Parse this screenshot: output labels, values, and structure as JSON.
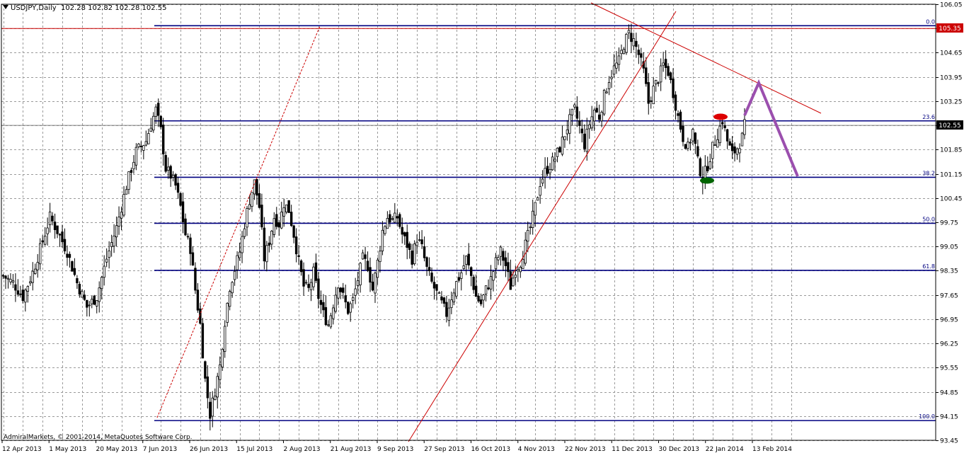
{
  "header": {
    "symbol": "USDJPY,Daily",
    "ohlc": "102.28 102.82 102.28 102.55"
  },
  "copyright": "AdmiralMarkets, © 2001-2014, MetaQuotes Software Corp.",
  "price_labels": {
    "current": "102.55",
    "resistance": "105.35"
  },
  "chart_data": {
    "type": "candlestick",
    "title": "USDJPY,Daily",
    "grid": true,
    "ylim": [
      93.45,
      106.05
    ],
    "y_ticks": [
      "106.05",
      "105.35",
      "104.65",
      "103.95",
      "103.25",
      "102.55",
      "101.85",
      "101.15",
      "100.45",
      "99.75",
      "99.05",
      "98.35",
      "97.65",
      "96.95",
      "96.25",
      "95.55",
      "94.85",
      "94.15",
      "93.45"
    ],
    "x_ticks": [
      "12 Apr 2013",
      "1 May 2013",
      "20 May 2013",
      "7 Jun 2013",
      "26 Jun 2013",
      "15 Jul 2013",
      "2 Aug 2013",
      "21 Aug 2013",
      "9 Sep 2013",
      "27 Sep 2013",
      "16 Oct 2013",
      "4 Nov 2013",
      "22 Nov 2013",
      "11 Dec 2013",
      "30 Dec 2013",
      "22 Jan 2014",
      "13 Feb 2014"
    ],
    "series": [
      {
        "close_path": [
          [
            0,
            98.2
          ],
          [
            4,
            98.0
          ],
          [
            8,
            97.6
          ],
          [
            12,
            98.3
          ],
          [
            16,
            99.2
          ],
          [
            19,
            99.9
          ],
          [
            22,
            99.5
          ],
          [
            26,
            98.9
          ],
          [
            30,
            98.0
          ],
          [
            34,
            97.3
          ],
          [
            38,
            97.6
          ],
          [
            42,
            98.7
          ],
          [
            46,
            99.6
          ],
          [
            50,
            100.8
          ],
          [
            54,
            101.8
          ],
          [
            58,
            102.1
          ],
          [
            60,
            102.6
          ],
          [
            62,
            103.0
          ],
          [
            64,
            102.4
          ],
          [
            66,
            101.3
          ],
          [
            68,
            101.1
          ],
          [
            70,
            100.8
          ],
          [
            72,
            100.2
          ],
          [
            74,
            99.4
          ],
          [
            76,
            99.0
          ],
          [
            78,
            97.8
          ],
          [
            80,
            96.8
          ],
          [
            82,
            95.2
          ],
          [
            84,
            94.2
          ],
          [
            86,
            94.9
          ],
          [
            88,
            95.6
          ],
          [
            90,
            96.9
          ],
          [
            92,
            97.9
          ],
          [
            94,
            98.4
          ],
          [
            96,
            98.9
          ],
          [
            98,
            99.7
          ],
          [
            100,
            100.4
          ],
          [
            102,
            100.9
          ],
          [
            104,
            100.2
          ],
          [
            106,
            98.7
          ],
          [
            108,
            99.2
          ],
          [
            110,
            99.9
          ],
          [
            112,
            99.7
          ],
          [
            114,
            100.3
          ],
          [
            116,
            100.1
          ],
          [
            118,
            99.4
          ],
          [
            120,
            98.6
          ],
          [
            122,
            97.9
          ],
          [
            124,
            97.8
          ],
          [
            126,
            98.3
          ],
          [
            128,
            97.6
          ],
          [
            130,
            97.1
          ],
          [
            132,
            96.8
          ],
          [
            134,
            97.4
          ],
          [
            136,
            98.0
          ],
          [
            138,
            97.6
          ],
          [
            140,
            97.2
          ],
          [
            142,
            97.5
          ],
          [
            144,
            98.1
          ],
          [
            146,
            98.7
          ],
          [
            148,
            98.5
          ],
          [
            150,
            97.8
          ],
          [
            152,
            98.6
          ],
          [
            154,
            99.5
          ],
          [
            156,
            99.9
          ],
          [
            158,
            99.8
          ],
          [
            160,
            99.9
          ],
          [
            162,
            99.4
          ],
          [
            164,
            99.1
          ],
          [
            166,
            98.7
          ],
          [
            168,
            99.3
          ],
          [
            170,
            99.0
          ],
          [
            172,
            98.4
          ],
          [
            174,
            98.0
          ],
          [
            176,
            97.7
          ],
          [
            178,
            97.4
          ],
          [
            180,
            97.1
          ],
          [
            182,
            97.6
          ],
          [
            184,
            98.0
          ],
          [
            186,
            98.3
          ],
          [
            188,
            98.7
          ],
          [
            190,
            98.2
          ],
          [
            192,
            97.6
          ],
          [
            194,
            97.4
          ],
          [
            196,
            97.8
          ],
          [
            198,
            98.1
          ],
          [
            200,
            98.6
          ],
          [
            202,
            98.9
          ],
          [
            204,
            98.5
          ],
          [
            206,
            97.9
          ],
          [
            208,
            98.4
          ],
          [
            210,
            98.6
          ],
          [
            212,
            99.1
          ],
          [
            214,
            99.6
          ],
          [
            216,
            100.2
          ],
          [
            218,
            100.9
          ],
          [
            220,
            101.2
          ],
          [
            222,
            101.4
          ],
          [
            224,
            101.6
          ],
          [
            226,
            101.9
          ],
          [
            228,
            102.3
          ],
          [
            230,
            102.7
          ],
          [
            232,
            103.0
          ],
          [
            234,
            102.5
          ],
          [
            236,
            102.0
          ],
          [
            238,
            102.6
          ],
          [
            240,
            103.0
          ],
          [
            242,
            102.8
          ],
          [
            244,
            103.4
          ],
          [
            246,
            103.9
          ],
          [
            248,
            104.2
          ],
          [
            250,
            104.4
          ],
          [
            252,
            104.9
          ],
          [
            254,
            105.2
          ],
          [
            256,
            105.0
          ],
          [
            258,
            104.6
          ],
          [
            260,
            104.1
          ],
          [
            262,
            103.2
          ],
          [
            264,
            103.6
          ],
          [
            266,
            103.9
          ],
          [
            268,
            104.3
          ],
          [
            270,
            104.1
          ],
          [
            272,
            103.5
          ],
          [
            274,
            102.8
          ],
          [
            276,
            102.2
          ],
          [
            278,
            101.9
          ],
          [
            280,
            102.4
          ],
          [
            282,
            101.5
          ],
          [
            284,
            101.0
          ],
          [
            286,
            101.4
          ],
          [
            288,
            101.9
          ],
          [
            290,
            102.3
          ],
          [
            292,
            102.7
          ],
          [
            294,
            102.1
          ],
          [
            296,
            101.7
          ],
          [
            298,
            101.9
          ],
          [
            300,
            102.2
          ],
          [
            301,
            102.55
          ]
        ]
      }
    ],
    "fibonacci": {
      "levels": [
        {
          "label": "0.0",
          "price": 105.43
        },
        {
          "label": "23.6",
          "price": 102.68
        },
        {
          "label": "38.2",
          "price": 101.05
        },
        {
          "label": "50.0",
          "price": 99.72
        },
        {
          "label": "61.8",
          "price": 98.36
        },
        {
          "label": "100.0",
          "price": 94.02
        }
      ]
    },
    "horizontal_lines": [
      {
        "price": 105.35,
        "color": "#cc0000"
      },
      {
        "price": 102.55,
        "color": "#808080"
      }
    ],
    "colors": {
      "fib": "#000080",
      "trendline": "#cc0000",
      "projection": "#9b4fae",
      "marker_top": "#dd0000",
      "marker_bottom": "#006400",
      "candle": "#000000"
    }
  }
}
